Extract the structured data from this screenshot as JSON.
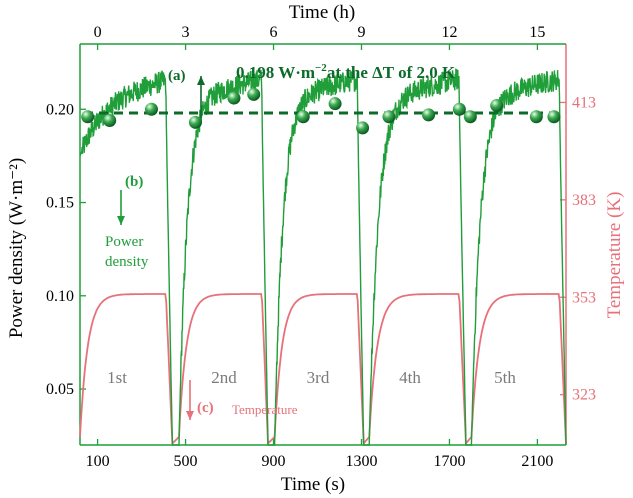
{
  "colors": {
    "power": "#1f9e3a",
    "power_dark": "#0d6b2a",
    "temperature": "#e7717a",
    "axis_left": "#000000",
    "cycle_label": "#7a7a7a"
  },
  "chart_data": {
    "type": "line",
    "xlabel_bottom": "Time (s)",
    "xlabel_top": "Time (h)",
    "ylabel_left": "Power density (W·m⁻²)",
    "ylabel_right": "Temperature (K)",
    "x_ticks_bottom": [
      100,
      500,
      900,
      1300,
      1700,
      2100
    ],
    "x_ticks_top": [
      0,
      3,
      6,
      9,
      12,
      15
    ],
    "xlim": [
      20,
      2230
    ],
    "y_left_ticks": [
      0.05,
      0.1,
      0.15,
      0.2
    ],
    "y_left_lim": [
      0.02,
      0.235
    ],
    "y_right_ticks": [
      323,
      353,
      383,
      413
    ],
    "y_right_lim": [
      307.5,
      431
    ],
    "reference_line": {
      "y": 0.198,
      "style": "dashed"
    },
    "annotation_main": {
      "text": "0.198 W·m",
      "sup": "−2",
      "rest": "at the ΔT of 2.0 K"
    },
    "marker_labels": {
      "a": "(a)",
      "b": "(b)",
      "c": "(c)"
    },
    "series_labels": {
      "power_line1": "Power",
      "power_line2": "density",
      "temperature": "Temperature"
    },
    "cycle_labels": [
      "1st",
      "2nd",
      "3rd",
      "4th",
      "5th"
    ],
    "cycles": [
      {
        "start": 20,
        "end": 440
      },
      {
        "start": 470,
        "end": 875
      },
      {
        "start": 905,
        "end": 1310
      },
      {
        "start": 1335,
        "end": 1775
      },
      {
        "start": 1800,
        "end": 2230
      }
    ],
    "scatter_points": [
      {
        "x": 55,
        "y": 0.196
      },
      {
        "x": 155,
        "y": 0.194
      },
      {
        "x": 345,
        "y": 0.2
      },
      {
        "x": 545,
        "y": 0.193
      },
      {
        "x": 720,
        "y": 0.206
      },
      {
        "x": 810,
        "y": 0.208
      },
      {
        "x": 1035,
        "y": 0.196
      },
      {
        "x": 1180,
        "y": 0.203
      },
      {
        "x": 1305,
        "y": 0.19
      },
      {
        "x": 1425,
        "y": 0.196
      },
      {
        "x": 1605,
        "y": 0.197
      },
      {
        "x": 1745,
        "y": 0.2
      },
      {
        "x": 1795,
        "y": 0.196
      },
      {
        "x": 1915,
        "y": 0.202
      },
      {
        "x": 2095,
        "y": 0.196
      },
      {
        "x": 2175,
        "y": 0.196
      }
    ]
  }
}
